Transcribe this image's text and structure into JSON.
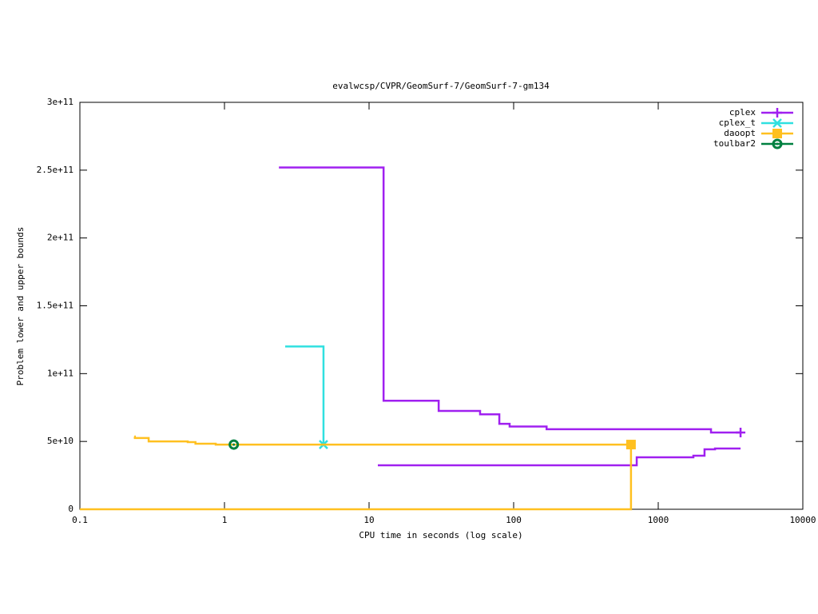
{
  "chart_data": {
    "type": "step",
    "title": "evalwcsp/CVPR/GeomSurf-7/GeomSurf-7-gm134",
    "x_label": "CPU time in seconds (log scale)",
    "y_label": "Problem lower and upper bounds",
    "x_scale": "log",
    "xlim": [
      0.1,
      10000
    ],
    "xticks": [
      0.1,
      1,
      10,
      100,
      1000,
      10000
    ],
    "ylim": [
      0,
      300000000000
    ],
    "yticks": [
      0,
      {
        "value": 50000000000,
        "label": "5e+10"
      },
      {
        "value": 100000000000,
        "label": "1e+11"
      },
      {
        "value": 150000000000,
        "label": "1.5e+11"
      },
      {
        "value": 200000000000,
        "label": "2e+11"
      },
      {
        "value": 250000000000,
        "label": "2.5e+11"
      },
      {
        "value": 300000000000,
        "label": "3e+11"
      }
    ],
    "legend": "upper right",
    "series": [
      {
        "name": "cplex",
        "color": "#a020f0",
        "marker": "plus",
        "lines": [
          {
            "x": [
              2.38,
              12.6,
              30.3,
              58.6,
              79.6,
              93.8,
              169,
              2317,
              3710
            ],
            "values": [
              252000000000,
              80000000000,
              72500000000,
              70000000000,
              63000000000,
              61000000000,
              59000000000,
              56600000000,
              56600000000
            ]
          },
          {
            "x": [
              11.5,
              710,
              1750,
              2090,
              2470,
              3710
            ],
            "values": [
              32400000000,
              38300000000,
              39500000000,
              44200000000,
              44800000000,
              44800000000
            ]
          }
        ]
      },
      {
        "name": "cplex_t",
        "color": "#30e0e0",
        "marker": "cross",
        "lines": [
          {
            "x": [
              2.63,
              4.84
            ],
            "values": [
              120000000000,
              47700000000
            ]
          }
        ]
      },
      {
        "name": "daoopt",
        "color": "#ffc020",
        "marker": "square",
        "lines": [
          {
            "x": [
              0.238,
              0.24,
              0.299,
              0.557,
              0.63,
              0.87,
              648
            ],
            "values": [
              53600000000,
              52500000000,
              50000000000,
              49500000000,
              48300000000,
              47700000000,
              47700000000
            ]
          },
          {
            "x": [
              0.1,
              648
            ],
            "values": [
              0,
              47700000000
            ]
          }
        ]
      },
      {
        "name": "toulbar2",
        "color": "#008040",
        "marker": "circle",
        "lines": [
          {
            "x": [
              1.16
            ],
            "values": [
              47700000000
            ]
          }
        ]
      }
    ]
  }
}
